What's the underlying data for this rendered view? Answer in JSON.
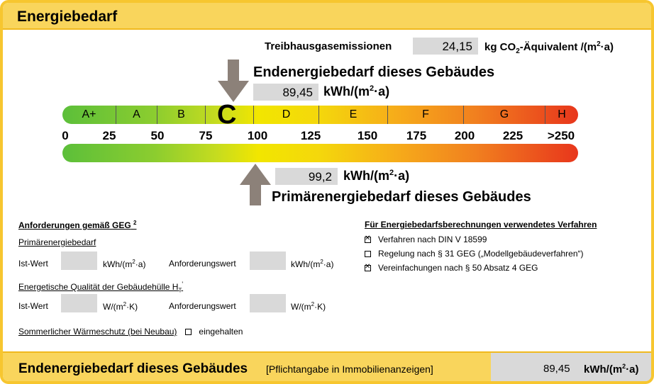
{
  "header": {
    "title": "Energiebedarf"
  },
  "ghg": {
    "label": "Treibhausgasemissionen",
    "value": "24,15",
    "unit_prefix": "kg CO",
    "unit_sub": "2",
    "unit_suffix": "-Äquivalent /(m",
    "unit_sup": "2",
    "unit_end": "·a)"
  },
  "end_energy": {
    "heading": "Endenergiebedarf dieses Gebäudes",
    "value": "89,45",
    "unit": "kWh/(m",
    "unit_sup": "2",
    "unit_end": "·a)"
  },
  "primary_energy": {
    "heading": "Primärenergiebedarf dieses Gebäudes",
    "value": "99,2",
    "unit": "kWh/(m",
    "unit_sup": "2",
    "unit_end": "·a)"
  },
  "scale": {
    "classes": [
      "A+",
      "A",
      "B",
      "C",
      "D",
      "E",
      "F",
      "G",
      "H"
    ],
    "current_class": "C",
    "ticks": [
      "0",
      "25",
      "50",
      "75",
      "100",
      "125",
      "150",
      "175",
      "200",
      "225",
      ">250"
    ],
    "end_energy_value": 89.45,
    "primary_energy_value": 99.2,
    "max": 250
  },
  "requirements": {
    "title": "Anforderungen gemäß GEG",
    "title_sup": "2",
    "primary_label": "Primärenergiebedarf",
    "ist_label": "Ist-Wert",
    "kwh_unit": "kWh/(m",
    "kwh_sup": "2",
    "kwh_end": "·a)",
    "anf_label": "Anforderungswert",
    "envelope_label": "Energetische Qualität der Gebäudehülle H",
    "envelope_sub": "T",
    "envelope_sup": "'",
    "w_unit": "W/(m",
    "w_sup": "2",
    "w_end": "·K)",
    "summer_label": "Sommerlicher Wärmeschutz (bei Neubau)",
    "summer_check": "eingehalten"
  },
  "method": {
    "title": "Für Energiebedarfsberechnungen verwendetes Verfahren",
    "items": [
      {
        "label": "Verfahren nach DIN V 18599",
        "checked": true
      },
      {
        "label": "Regelung nach § 31 GEG („Modellgebäudeverfahren“)",
        "checked": false
      },
      {
        "label": "Vereinfachungen nach § 50 Absatz 4 GEG",
        "checked": true
      }
    ]
  },
  "footer": {
    "label": "Endenergiebedarf dieses Gebäudes",
    "note": "[Pflichtangabe in Immobilienanzeigen]",
    "value": "89,45",
    "unit": "kWh/(m",
    "unit_sup": "2",
    "unit_end": "·a)"
  },
  "colors": {
    "frame": "#f7c62f",
    "header": "#f9d55c",
    "grey_field": "#d9d9d9",
    "arrow": "#8c8179"
  }
}
